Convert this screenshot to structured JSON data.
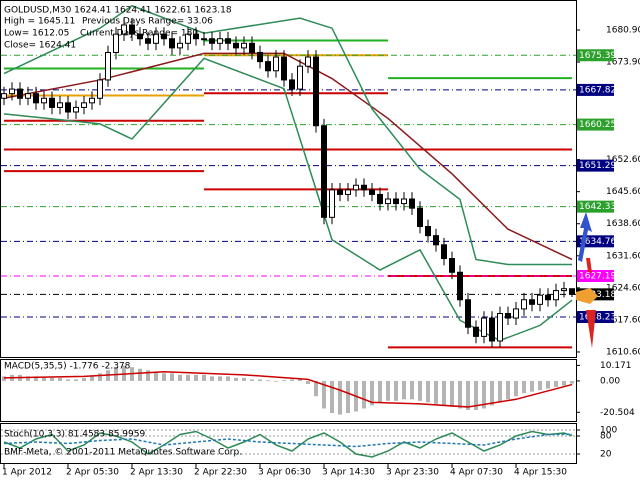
{
  "chart_data": [
    {
      "type": "candlestick",
      "title": "GOLDUSD,M30  1624.41 1624.41 1622.61 1623.18",
      "annotations": [
        "High = 1645.11",
        "Previous Days Range= 33.06",
        "Low= 1612.05",
        "Current Days Range= 180",
        "Close= 1624.41"
      ],
      "categories": [
        "1 Apr 2012",
        null,
        null,
        null,
        null,
        null,
        null,
        null,
        "2 Apr 05:30",
        null,
        null,
        null,
        null,
        null,
        null,
        null,
        "2 Apr 13:30",
        null,
        null,
        null,
        null,
        null,
        null,
        null,
        "2 Apr 22:30",
        null,
        null,
        null,
        null,
        null,
        null,
        null,
        "3 Apr 06:30",
        null,
        null,
        null,
        null,
        null,
        null,
        null,
        "3 Apr 14:30",
        null,
        null,
        null,
        null,
        null,
        null,
        null,
        "3 Apr 23:30",
        null,
        null,
        null,
        null,
        null,
        null,
        null,
        "4 Apr 07:30",
        null,
        null,
        null,
        null,
        null,
        null,
        null,
        "4 Apr 15:30",
        null,
        null,
        null,
        null,
        null,
        null,
        null
      ],
      "open": [
        1666,
        1667,
        1668,
        1666,
        1667,
        1665,
        1666,
        1664,
        1665,
        1663,
        1664,
        1665,
        1666,
        1670,
        1676,
        1680,
        1682,
        1680,
        1679,
        1678,
        1680,
        1679,
        1677,
        1678,
        1680,
        1679,
        1679,
        1678,
        1679,
        1678,
        1677,
        1678,
        1676,
        1674,
        1672,
        1675,
        1670,
        1668,
        1673,
        1675,
        1660,
        1640,
        1646,
        1645,
        1646,
        1647,
        1646,
        1645,
        1643,
        1644,
        1643,
        1644,
        1642,
        1638,
        1636,
        1634,
        1631,
        1628,
        1622,
        1616,
        1614,
        1618,
        1613,
        1619,
        1618,
        1620,
        1622,
        1621,
        1623,
        1622,
        1624,
        1624.41
      ],
      "high": [
        1668.5,
        1669.5,
        1669.5,
        1668.5,
        1668.5,
        1667.5,
        1667.5,
        1666.5,
        1666.5,
        1665.5,
        1666.5,
        1667.5,
        1671.5,
        1677.5,
        1681.5,
        1683.5,
        1683.5,
        1681.5,
        1680.5,
        1681.5,
        1681.5,
        1680.5,
        1679.5,
        1681.5,
        1681.5,
        1680.5,
        1680.5,
        1680.5,
        1680.5,
        1679.5,
        1679.5,
        1679.5,
        1677.5,
        1675.5,
        1676.5,
        1676.5,
        1671.5,
        1674.5,
        1676.5,
        1676.5,
        1661.5,
        1647.5,
        1647.5,
        1647.5,
        1648.5,
        1648.5,
        1647.5,
        1646.5,
        1645.5,
        1645.5,
        1645.5,
        1645.5,
        1643.5,
        1639.5,
        1637.5,
        1635.5,
        1632.5,
        1629.5,
        1623.5,
        1617.5,
        1619.5,
        1619.5,
        1620.5,
        1620.5,
        1621.5,
        1623.5,
        1623.5,
        1624.5,
        1624.5,
        1625.5,
        1625.9,
        1624.41
      ],
      "low": [
        1664.5,
        1665.5,
        1664.5,
        1664.5,
        1663.5,
        1663.5,
        1662.5,
        1662.5,
        1661.5,
        1661.5,
        1662.5,
        1663.5,
        1664.5,
        1668.5,
        1674.5,
        1678.5,
        1678.5,
        1677.5,
        1676.5,
        1676.5,
        1677.5,
        1675.5,
        1675.5,
        1676.5,
        1677.5,
        1677.5,
        1676.5,
        1676.5,
        1676.5,
        1675.5,
        1675.5,
        1674.5,
        1672.5,
        1670.5,
        1670.5,
        1668.5,
        1666.5,
        1666.5,
        1671.5,
        1658.5,
        1638.5,
        1638.5,
        1643.5,
        1643.5,
        1644.5,
        1644.5,
        1643.5,
        1641.5,
        1641.5,
        1641.5,
        1641.5,
        1640.5,
        1636.5,
        1634.5,
        1632.5,
        1629.5,
        1626.5,
        1620.5,
        1614.5,
        1612.5,
        1612.5,
        1611.5,
        1611.5,
        1616.5,
        1616.5,
        1618.5,
        1619.5,
        1619.5,
        1620.5,
        1620.5,
        1622.5,
        1622.61
      ],
      "close": [
        1667,
        1668,
        1666,
        1667,
        1665,
        1666,
        1664,
        1665,
        1663,
        1664,
        1665,
        1666,
        1670,
        1676,
        1680,
        1682,
        1680,
        1679,
        1678,
        1680,
        1679,
        1677,
        1678,
        1680,
        1679,
        1679,
        1678,
        1679,
        1678,
        1677,
        1678,
        1676,
        1674,
        1672,
        1675,
        1670,
        1668,
        1673,
        1675,
        1660,
        1640,
        1646,
        1645,
        1646,
        1647,
        1646,
        1645,
        1643,
        1644,
        1643,
        1644,
        1642,
        1638,
        1636,
        1634,
        1631,
        1628,
        1622,
        1616,
        1614,
        1618,
        1613,
        1619,
        1618,
        1620,
        1622,
        1621,
        1623,
        1622,
        1624,
        1624.41,
        1623.18
      ],
      "candle_color": "#000000",
      "ylim": [
        1609.5,
        1686.8
      ],
      "yticks": [
        {
          "value": 1610.6,
          "label": "1610.60"
        },
        {
          "value": 1617.6,
          "label": "1617.60"
        },
        {
          "value": 1624.6,
          "label": "1624.60"
        },
        {
          "value": 1631.6,
          "label": "1631.60"
        },
        {
          "value": 1638.6,
          "label": "1638.60"
        },
        {
          "value": 1645.6,
          "label": "1645.60"
        },
        {
          "value": 1652.6,
          "label": "1652.60"
        },
        {
          "value": 1673.9,
          "label": "1673.90"
        },
        {
          "value": 1680.9,
          "label": "1680.90"
        }
      ],
      "levels": [
        {
          "value": 1675.39,
          "color": "#2ca02c"
        },
        {
          "value": 1667.82,
          "color": "#000080"
        },
        {
          "value": 1660.25,
          "color": "#2ca02c"
        },
        {
          "value": 1651.29,
          "color": "#000080"
        },
        {
          "value": 1642.33,
          "color": "#2ca02c"
        },
        {
          "value": 1634.76,
          "color": "#000080"
        },
        {
          "value": 1627.19,
          "color": "#ff00ff"
        },
        {
          "value": 1623.18,
          "color": "#000000"
        },
        {
          "value": 1618.23,
          "color": "#000080"
        }
      ],
      "day_bounds": [
        0,
        25,
        48,
        71
      ],
      "day_lines": [
        {
          "color": "#22b022",
          "values": [
            1672.5,
            1678.6,
            1670.4
          ]
        },
        {
          "color": "#e8a000",
          "values": [
            1666.6,
            1675.4,
            1654.8
          ]
        },
        {
          "color": "#cc0000",
          "values": [
            1661.1,
            1667.1,
            1627.2
          ]
        },
        {
          "color": "#cc0000",
          "values": [
            1650.1,
            1646.1,
            1611.6
          ]
        },
        {
          "color": "#cc0000",
          "values": [
            1654.8,
            1654.8,
            1654.8
          ]
        }
      ],
      "lines": [
        {
          "color": "#8b1a1a",
          "x": [
            0,
            12,
            25,
            35,
            41,
            48,
            56,
            63,
            71
          ],
          "values": [
            1666,
            1670,
            1675.8,
            1675.8,
            1670.3,
            1661.6,
            1649.5,
            1637.4,
            1630.8
          ]
        },
        {
          "color": "#2e8b57",
          "x": [
            0,
            12,
            16,
            25,
            37,
            41,
            46,
            52,
            57,
            59,
            63,
            71
          ],
          "values": [
            1671.4,
            1681.3,
            1686.2,
            1680.2,
            1683.5,
            1681.3,
            1663.7,
            1650.5,
            1643.9,
            1630.8,
            1629.7,
            1629.7
          ]
        },
        {
          "color": "#2e8b57",
          "x": [
            0,
            12,
            16,
            25,
            35,
            41,
            47,
            52,
            57,
            62,
            67,
            71
          ],
          "values": [
            1662.6,
            1660.4,
            1657.1,
            1674.7,
            1668.1,
            1635.1,
            1628.5,
            1632.9,
            1617.5,
            1613.1,
            1616.4,
            1621.9
          ]
        }
      ]
    },
    {
      "type": "macd",
      "title": "MACD(5,35,5) -1.776 -2.378",
      "color": "#b4b4b4",
      "values": [
        3,
        4,
        4,
        3,
        3,
        2,
        2,
        2,
        1,
        1,
        2,
        3,
        5,
        7,
        9,
        10,
        9,
        8,
        7,
        6,
        5,
        5,
        4,
        4,
        4,
        4,
        3,
        3,
        3,
        2,
        2,
        1,
        1,
        0.5,
        -0.5,
        0.5,
        1,
        1,
        -2,
        -10,
        -18,
        -21,
        -22,
        -21,
        -20,
        -18,
        -16,
        -14,
        -13,
        -13,
        -12,
        -12,
        -13,
        -14,
        -15,
        -16,
        -17,
        -18,
        -19,
        -19,
        -18,
        -16,
        -14,
        -12,
        -10,
        -8,
        -7,
        -6,
        -5,
        -4,
        -3,
        -1.776
      ],
      "signal": {
        "color": "#cc0000",
        "x": [
          0,
          10,
          20,
          30,
          38,
          42,
          46,
          52,
          58,
          64,
          71
        ],
        "values": [
          2,
          3,
          6,
          4,
          1,
          -6,
          -14,
          -15,
          -17,
          -12,
          -2.378
        ]
      },
      "ylim": [
        -26.2,
        13.7
      ],
      "yticks": [
        10.171,
        {
          "value": 0,
          "label": "0.00"
        },
        -20.504
      ]
    },
    {
      "type": "stochastic",
      "title": "Stoch(10,3,3) 81.4583 85.9959",
      "ylim": [
        -10,
        120
      ],
      "yticks": [
        20,
        80,
        100
      ],
      "series": [
        {
          "color": "#2e8b57",
          "x": [
            0,
            2,
            4,
            6,
            8,
            10,
            12,
            14,
            16,
            18,
            20,
            22,
            24,
            26,
            28,
            30,
            32,
            34,
            36,
            38,
            40,
            42,
            44,
            46,
            48,
            50,
            52,
            54,
            56,
            58,
            60,
            62,
            64,
            66,
            68,
            70,
            71
          ],
          "values": [
            60,
            40,
            70,
            85,
            30,
            50,
            90,
            80,
            60,
            20,
            50,
            85,
            95,
            70,
            40,
            60,
            85,
            50,
            30,
            70,
            90,
            60,
            20,
            10,
            30,
            60,
            40,
            70,
            90,
            60,
            30,
            50,
            80,
            95,
            85,
            90,
            81.4583
          ]
        },
        {
          "color": "#1f77b4",
          "dashed": true,
          "x": [
            0,
            4,
            8,
            12,
            16,
            20,
            24,
            28,
            32,
            36,
            40,
            44,
            48,
            52,
            56,
            60,
            64,
            68,
            71
          ],
          "values": [
            55,
            60,
            55,
            65,
            70,
            50,
            60,
            70,
            60,
            55,
            50,
            45,
            55,
            60,
            55,
            50,
            70,
            85,
            85.9959
          ]
        }
      ]
    }
  ],
  "footer": "BMF-Meta, © 2001-2011 MetaQuotes Software Corp."
}
